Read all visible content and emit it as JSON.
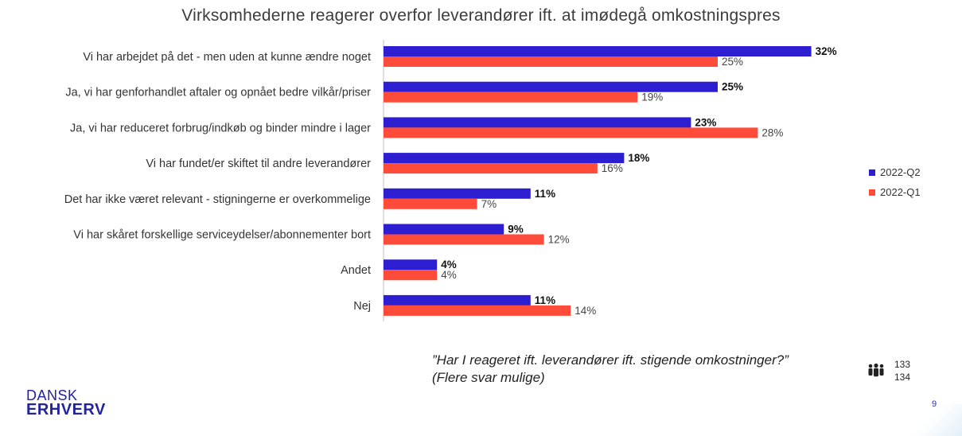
{
  "title": "Virksomhederne reagerer overfor leverandører ift. at imødegå omkostningspres",
  "legend": {
    "items": [
      {
        "label": "2022-Q2",
        "color": "#2d1fd1"
      },
      {
        "label": "2022-Q1",
        "color": "#ff4b3a"
      }
    ]
  },
  "question": {
    "line1": "”Har I reageret ift. leverandører ift. stigende omkostninger?”",
    "line2": "(Flere svar mulige)"
  },
  "respondents": {
    "icon": "people-icon",
    "q2": "133",
    "q1": "134"
  },
  "logo": {
    "line1": "DANSK",
    "line2": "ERHVERV",
    "color": "#23239b"
  },
  "page_number": "9",
  "chart_data": {
    "type": "bar",
    "orientation": "horizontal",
    "categories": [
      "Vi har arbejdet på det - men uden at kunne ændre noget",
      "Ja, vi har genforhandlet aftaler og opnået bedre vilkår/priser",
      "Ja, vi har reduceret forbrug/indkøb og binder mindre i lager",
      "Vi har fundet/er skiftet til andre leverandører",
      "Det har ikke været relevant - stigningerne er overkommelige",
      "Vi har skåret forskellige serviceydelser/abonnementer bort",
      "Andet",
      "Nej"
    ],
    "series": [
      {
        "name": "2022-Q2",
        "color": "#2d1fd1",
        "values": [
          32,
          25,
          23,
          18,
          11,
          9,
          4,
          11
        ],
        "labels": [
          "32%",
          "25%",
          "23%",
          "18%",
          "11%",
          "9%",
          "4%",
          "11%"
        ]
      },
      {
        "name": "2022-Q1",
        "color": "#ff4b3a",
        "values": [
          25,
          19,
          28,
          16,
          7,
          12,
          4,
          14
        ],
        "labels": [
          "25%",
          "19%",
          "28%",
          "16%",
          "7%",
          "12%",
          "4%",
          "14%"
        ]
      }
    ],
    "unit": "%",
    "xlim": [
      0,
      35
    ],
    "grid": false,
    "legend_position": "right"
  }
}
